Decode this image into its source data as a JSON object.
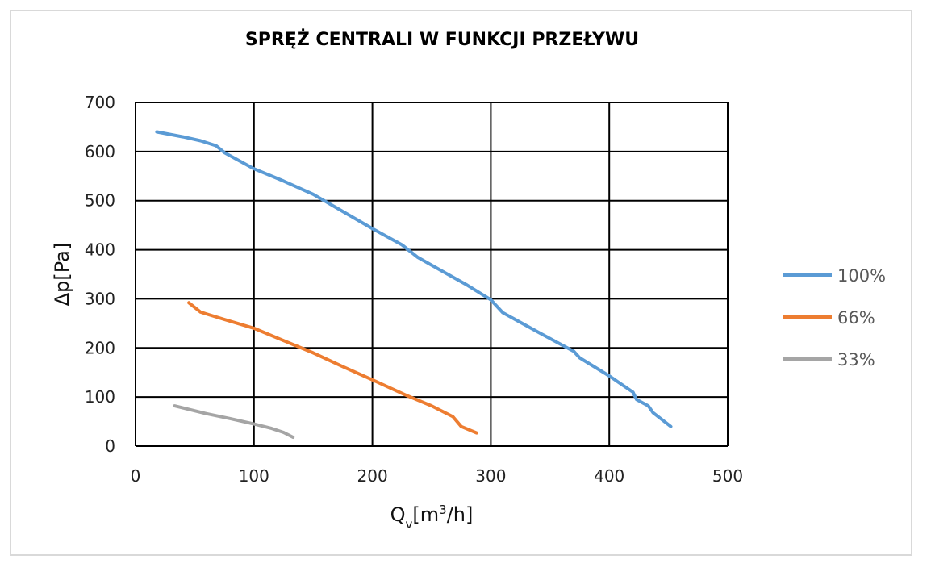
{
  "chart_data": {
    "type": "line",
    "title": "SPRĘŻ CENTRALI W FUNKCJI PRZEŁYWU",
    "xlabel": {
      "base": "Q",
      "sub": "v",
      "pre": "[m",
      "sup": "3",
      "post": "/h]"
    },
    "ylabel": "Δp[Pa]",
    "xlim": [
      0,
      500
    ],
    "ylim": [
      0,
      700
    ],
    "xticks": [
      0,
      100,
      200,
      300,
      400,
      500
    ],
    "yticks": [
      0,
      100,
      200,
      300,
      400,
      500,
      600,
      700
    ],
    "grid": true,
    "legend_position": "right",
    "series": [
      {
        "name": "100%",
        "color": "#5b9bd5",
        "x": [
          18,
          40,
          55,
          68,
          75,
          100,
          125,
          150,
          175,
          200,
          225,
          238,
          260,
          280,
          300,
          310,
          340,
          370,
          375,
          400,
          420,
          423,
          433,
          437,
          452
        ],
        "y": [
          640,
          630,
          622,
          612,
          598,
          565,
          540,
          513,
          478,
          443,
          410,
          385,
          355,
          328,
          298,
          272,
          232,
          193,
          180,
          143,
          110,
          95,
          82,
          68,
          40
        ]
      },
      {
        "name": "66%",
        "color": "#ed7d31",
        "x": [
          45,
          55,
          75,
          100,
          125,
          150,
          175,
          200,
          230,
          250,
          268,
          275,
          288
        ],
        "y": [
          292,
          273,
          258,
          240,
          215,
          190,
          162,
          135,
          102,
          82,
          60,
          40,
          27
        ]
      },
      {
        "name": "33%",
        "color": "#a5a5a5",
        "x": [
          33,
          60,
          80,
          100,
          115,
          125,
          133
        ],
        "y": [
          82,
          66,
          56,
          45,
          36,
          28,
          18
        ]
      }
    ]
  }
}
